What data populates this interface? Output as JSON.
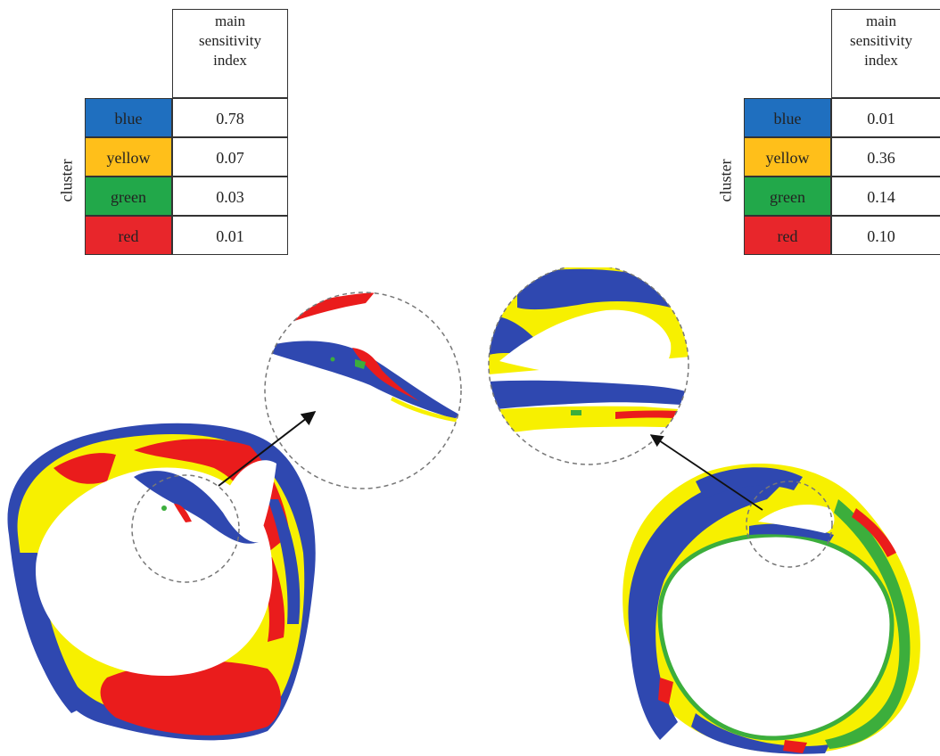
{
  "tables": [
    {
      "header": [
        "main",
        "sensitivity",
        "index"
      ],
      "axis_label": "cluster",
      "rows": [
        {
          "label": "blue",
          "value": "0.78",
          "color": "#1f6fbf"
        },
        {
          "label": "yellow",
          "value": "0.07",
          "color": "#ffbf1a"
        },
        {
          "label": "green",
          "value": "0.03",
          "color": "#22a84a"
        },
        {
          "label": "red",
          "value": "0.01",
          "color": "#e8262b"
        }
      ]
    },
    {
      "header": [
        "main",
        "sensitivity",
        "index"
      ],
      "axis_label": "cluster",
      "rows": [
        {
          "label": "blue",
          "value": "0.01",
          "color": "#1f6fbf"
        },
        {
          "label": "yellow",
          "value": "0.36",
          "color": "#ffbf1a"
        },
        {
          "label": "green",
          "value": "0.14",
          "color": "#22a84a"
        },
        {
          "label": "red",
          "value": "0.10",
          "color": "#e8262b"
        }
      ]
    }
  ],
  "colors": {
    "blue": "#2f48b0",
    "yellow": "#f7f000",
    "green": "#3cae3c",
    "red": "#ea1c1c",
    "callout": "#777777",
    "arrow": "#111111"
  }
}
